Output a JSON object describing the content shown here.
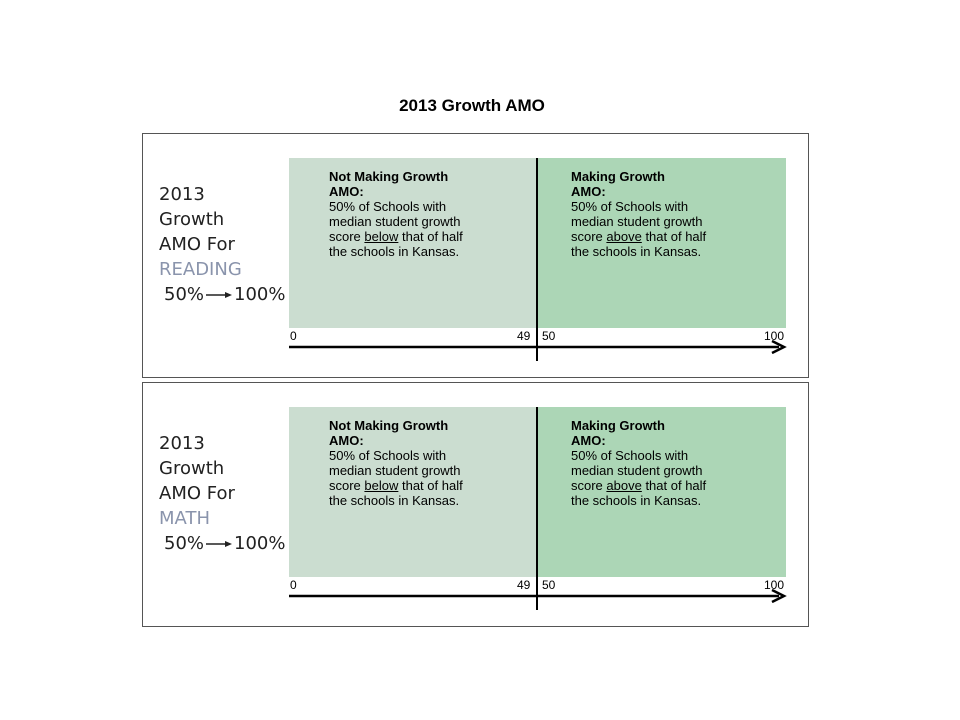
{
  "title": "2013 Growth AMO",
  "panels": [
    {
      "side": {
        "line1": "2013",
        "line2": "Growth",
        "line3": "AMO For",
        "subject": "READING",
        "range_from": "50%",
        "range_to": "100%"
      },
      "left_zone": {
        "heading_line1": "Not Making Growth",
        "heading_line2": "AMO:",
        "line1": "50% of Schools with",
        "line2": "median student growth",
        "line3_pre": "score ",
        "line3_key": "below",
        "line3_post": " that of half",
        "line4": "the schools in Kansas."
      },
      "right_zone": {
        "heading_line1": "Making Growth",
        "heading_line2": "AMO:",
        "line1": "50% of Schools with",
        "line2": "median student growth",
        "line3_pre": "score ",
        "line3_key": "above",
        "line3_post": " that of half",
        "line4": "the schools in Kansas."
      },
      "axis": {
        "start": "0",
        "left_end": "49",
        "right_start": "50",
        "end": "100"
      }
    },
    {
      "side": {
        "line1": "2013",
        "line2": "Growth",
        "line3": "AMO For",
        "subject": "MATH",
        "range_from": "50%",
        "range_to": "100%"
      },
      "left_zone": {
        "heading_line1": "Not Making Growth",
        "heading_line2": "AMO:",
        "line1": "50% of Schools with",
        "line2": "median student growth",
        "line3_pre": "score ",
        "line3_key": "below",
        "line3_post": " that of half",
        "line4": "the schools in Kansas."
      },
      "right_zone": {
        "heading_line1": "Making Growth",
        "heading_line2": "AMO:",
        "line1": "50% of Schools with",
        "line2": "median student growth",
        "line3_pre": "score ",
        "line3_key": "above",
        "line3_post": " that of half",
        "line4": "the schools in Kansas."
      },
      "axis": {
        "start": "0",
        "left_end": "49",
        "right_start": "50",
        "end": "100"
      }
    }
  ],
  "colors": {
    "not_making": "#cbddd0",
    "making": "#acd6b6",
    "subject": "#8a94ac"
  }
}
